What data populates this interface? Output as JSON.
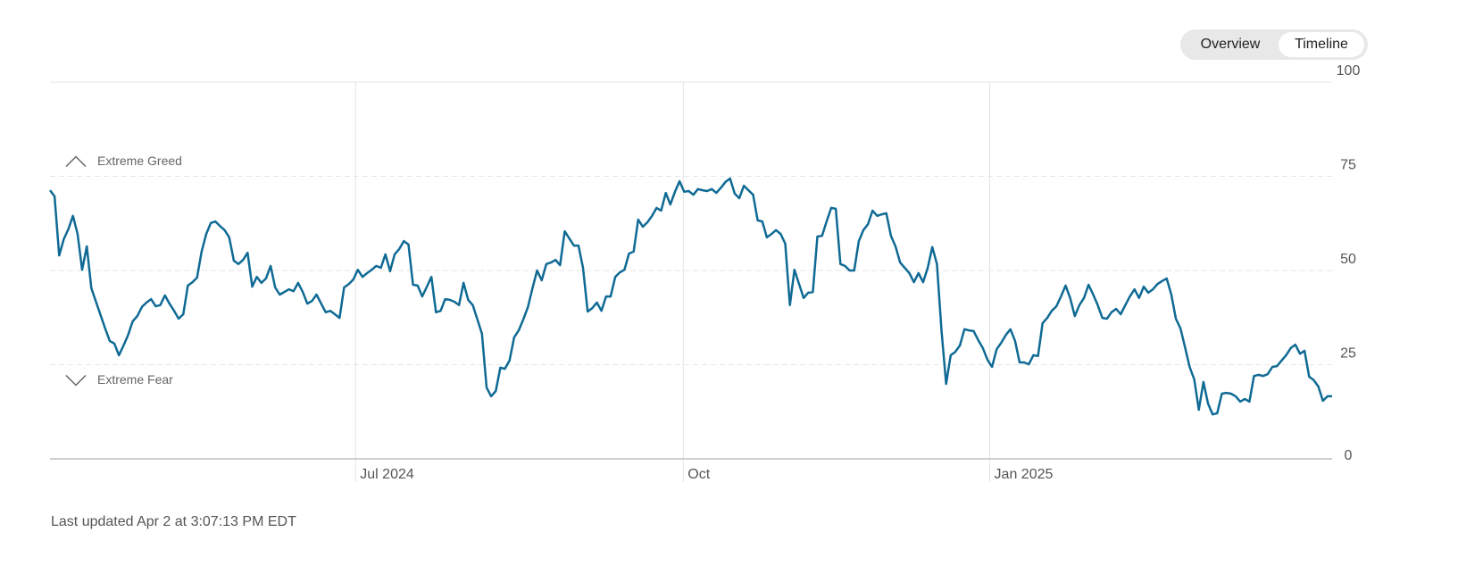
{
  "chart_data": {
    "type": "line",
    "buttons": [
      "Overview",
      "Timeline"
    ],
    "footer": "Last updated Apr 2 at 3:07:13 PM EDT",
    "annotations": [
      {
        "label": "Extreme Greed",
        "value": 75
      },
      {
        "label": "Extreme Fear",
        "value": 25
      }
    ],
    "color": "#0f6a94",
    "ylim": [
      0,
      100
    ],
    "yticks": [
      0,
      25,
      50,
      75,
      100
    ],
    "xticks": [
      {
        "value": 66.5,
        "label": "Jul 2024"
      },
      {
        "value": 137.8,
        "label": "Oct"
      },
      {
        "value": 204.5,
        "label": "Jan 2025"
      }
    ],
    "grid": true,
    "values": [
      71.3,
      69.7,
      54,
      58.3,
      61,
      64.5,
      59.7,
      50.2,
      56.4,
      45.3,
      41.7,
      38.2,
      34.6,
      31.3,
      30.6,
      27.5,
      30.1,
      32.9,
      36.5,
      37.9,
      40.3,
      41.5,
      42.4,
      40.5,
      40.8,
      43.4,
      41.2,
      39.3,
      37.2,
      38.4,
      46,
      46.9,
      48.1,
      55,
      59.7,
      62.6,
      63,
      61.8,
      60.7,
      58.8,
      52.6,
      51.7,
      52.8,
      54.7,
      45.7,
      48.3,
      46.7,
      47.9,
      51.2,
      45.5,
      43.6,
      44.3,
      45,
      44.5,
      46.7,
      44.3,
      41.2,
      41.9,
      43.6,
      41.2,
      38.9,
      39.3,
      38.4,
      37.4,
      45.5,
      46.4,
      47.6,
      50.2,
      48.3,
      49.3,
      50.2,
      51.2,
      50.7,
      54.3,
      49.8,
      54.3,
      55.7,
      57.8,
      56.9,
      46.2,
      46,
      43.1,
      45.7,
      48.3,
      38.9,
      39.3,
      42.4,
      42.2,
      41.7,
      40.8,
      46.7,
      42.2,
      40.8,
      37,
      33.2,
      18.9,
      16.6,
      18,
      24.2,
      23.9,
      26.1,
      32.2,
      34.1,
      37,
      40.3,
      45.3,
      50,
      47.4,
      51.7,
      52.1,
      52.8,
      51.4,
      60.4,
      58.5,
      56.6,
      56.6,
      50.7,
      39.1,
      40,
      41.5,
      39.3,
      43.1,
      43.1,
      48.3,
      49.5,
      50.2,
      54.5,
      55,
      63.5,
      61.6,
      62.8,
      64.5,
      66.6,
      65.9,
      70.6,
      67.5,
      70.9,
      73.7,
      70.9,
      71.1,
      70.1,
      71.6,
      71.3,
      71.1,
      71.6,
      70.6,
      72,
      73.5,
      74.4,
      70.4,
      69.2,
      72.5,
      71.3,
      70.1,
      63.3,
      63,
      58.8,
      59.7,
      60.7,
      59.7,
      57.1,
      40.8,
      50.2,
      46.4,
      42.7,
      44.1,
      44.3,
      59,
      59.2,
      63,
      66.6,
      66.4,
      51.7,
      51.2,
      50,
      50,
      57.8,
      60.7,
      62.3,
      65.9,
      64.5,
      64.9,
      65.2,
      59.2,
      56.4,
      52.1,
      50.7,
      49.3,
      46.9,
      49.3,
      46.9,
      50.7,
      56.2,
      51.7,
      34.1,
      19.9,
      27.5,
      28.4,
      30.1,
      34.4,
      34.1,
      33.9,
      31.5,
      29.4,
      26.3,
      24.4,
      29.1,
      30.8,
      32.9,
      34.4,
      31.3,
      25.6,
      25.6,
      25.1,
      27.5,
      27.3,
      36,
      37.4,
      39.3,
      40.5,
      43.1,
      46,
      42.7,
      37.9,
      40.8,
      42.7,
      46.2,
      43.6,
      40.8,
      37.4,
      37.2,
      38.9,
      39.8,
      38.4,
      40.8,
      43.1,
      45,
      42.7,
      45.7,
      44.1,
      45,
      46.4,
      47.2,
      47.9,
      43.6,
      37.2,
      34.6,
      29.6,
      24.4,
      21.1,
      13,
      20.4,
      14.7,
      11.8,
      12.1,
      17.3,
      17.5,
      17.3,
      16.6,
      15.2,
      15.9,
      15.2,
      22,
      22.3,
      22,
      22.5,
      24.4,
      24.6,
      26.1,
      27.5,
      29.4,
      30.3,
      27.9,
      28.7,
      21.8,
      20.9,
      19.2,
      15.4,
      16.6,
      16.6
    ]
  }
}
